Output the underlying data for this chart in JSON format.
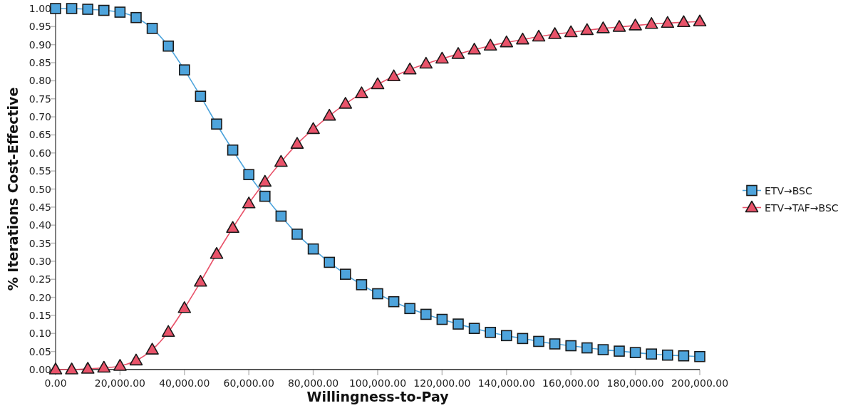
{
  "chart_data": {
    "type": "line",
    "xlabel": "Willingness-to-Pay",
    "ylabel": "% Iterations Cost-Effective",
    "x": [
      0,
      5000,
      10000,
      15000,
      20000,
      25000,
      30000,
      35000,
      40000,
      45000,
      50000,
      55000,
      60000,
      65000,
      70000,
      75000,
      80000,
      85000,
      90000,
      95000,
      100000,
      105000,
      110000,
      115000,
      120000,
      125000,
      130000,
      135000,
      140000,
      145000,
      150000,
      155000,
      160000,
      165000,
      170000,
      175000,
      180000,
      185000,
      190000,
      195000,
      200000
    ],
    "series": [
      {
        "name": "ETV→BSC",
        "color": "#4ea4dc",
        "marker": "square",
        "values": [
          1.0,
          1.0,
          0.998,
          0.995,
          0.99,
          0.975,
          0.945,
          0.896,
          0.83,
          0.757,
          0.68,
          0.608,
          0.54,
          0.48,
          0.425,
          0.375,
          0.334,
          0.297,
          0.264,
          0.235,
          0.21,
          0.188,
          0.169,
          0.153,
          0.139,
          0.126,
          0.114,
          0.103,
          0.094,
          0.086,
          0.078,
          0.071,
          0.066,
          0.06,
          0.055,
          0.051,
          0.047,
          0.043,
          0.04,
          0.038,
          0.036
        ]
      },
      {
        "name": "ETV→TAF→BSC",
        "color": "#e9536a",
        "marker": "triangle",
        "values": [
          0.0,
          0.0,
          0.002,
          0.005,
          0.01,
          0.025,
          0.055,
          0.104,
          0.17,
          0.243,
          0.32,
          0.392,
          0.46,
          0.52,
          0.575,
          0.625,
          0.666,
          0.703,
          0.736,
          0.765,
          0.79,
          0.812,
          0.831,
          0.847,
          0.861,
          0.874,
          0.886,
          0.897,
          0.906,
          0.914,
          0.922,
          0.929,
          0.934,
          0.94,
          0.945,
          0.949,
          0.953,
          0.957,
          0.96,
          0.962,
          0.964
        ]
      }
    ],
    "xlim": [
      0,
      200000
    ],
    "xticks": [
      {
        "value": 0,
        "label": "0.00"
      },
      {
        "value": 20000,
        "label": "20,000.00"
      },
      {
        "value": 40000,
        "label": "40,000.00"
      },
      {
        "value": 60000,
        "label": "60,000.00"
      },
      {
        "value": 80000,
        "label": "80,000.00"
      },
      {
        "value": 100000,
        "label": "100,000.00"
      },
      {
        "value": 120000,
        "label": "120,000.00"
      },
      {
        "value": 140000,
        "label": "140,000.00"
      },
      {
        "value": 160000,
        "label": "160,000.00"
      },
      {
        "value": 180000,
        "label": "180,000.00"
      },
      {
        "value": 200000,
        "label": "200,000.00"
      }
    ],
    "ylim": [
      0,
      1
    ],
    "yticks": [
      {
        "value": 0,
        "label": "0.00"
      },
      {
        "value": 0.05,
        "label": "0.05"
      },
      {
        "value": 0.1,
        "label": "0.10"
      },
      {
        "value": 0.15,
        "label": "0.15"
      },
      {
        "value": 0.2,
        "label": "0.20"
      },
      {
        "value": 0.25,
        "label": "0.25"
      },
      {
        "value": 0.3,
        "label": "0.30"
      },
      {
        "value": 0.35,
        "label": "0.35"
      },
      {
        "value": 0.4,
        "label": "0.40"
      },
      {
        "value": 0.45,
        "label": "0.45"
      },
      {
        "value": 0.5,
        "label": "0.50"
      },
      {
        "value": 0.55,
        "label": "0.55"
      },
      {
        "value": 0.6,
        "label": "0.60"
      },
      {
        "value": 0.65,
        "label": "0.65"
      },
      {
        "value": 0.7,
        "label": "0.70"
      },
      {
        "value": 0.75,
        "label": "0.75"
      },
      {
        "value": 0.8,
        "label": "0.80"
      },
      {
        "value": 0.85,
        "label": "0.85"
      },
      {
        "value": 0.9,
        "label": "0.90"
      },
      {
        "value": 0.95,
        "label": "0.95"
      },
      {
        "value": 1,
        "label": "1.00"
      }
    ],
    "legend": "right"
  }
}
